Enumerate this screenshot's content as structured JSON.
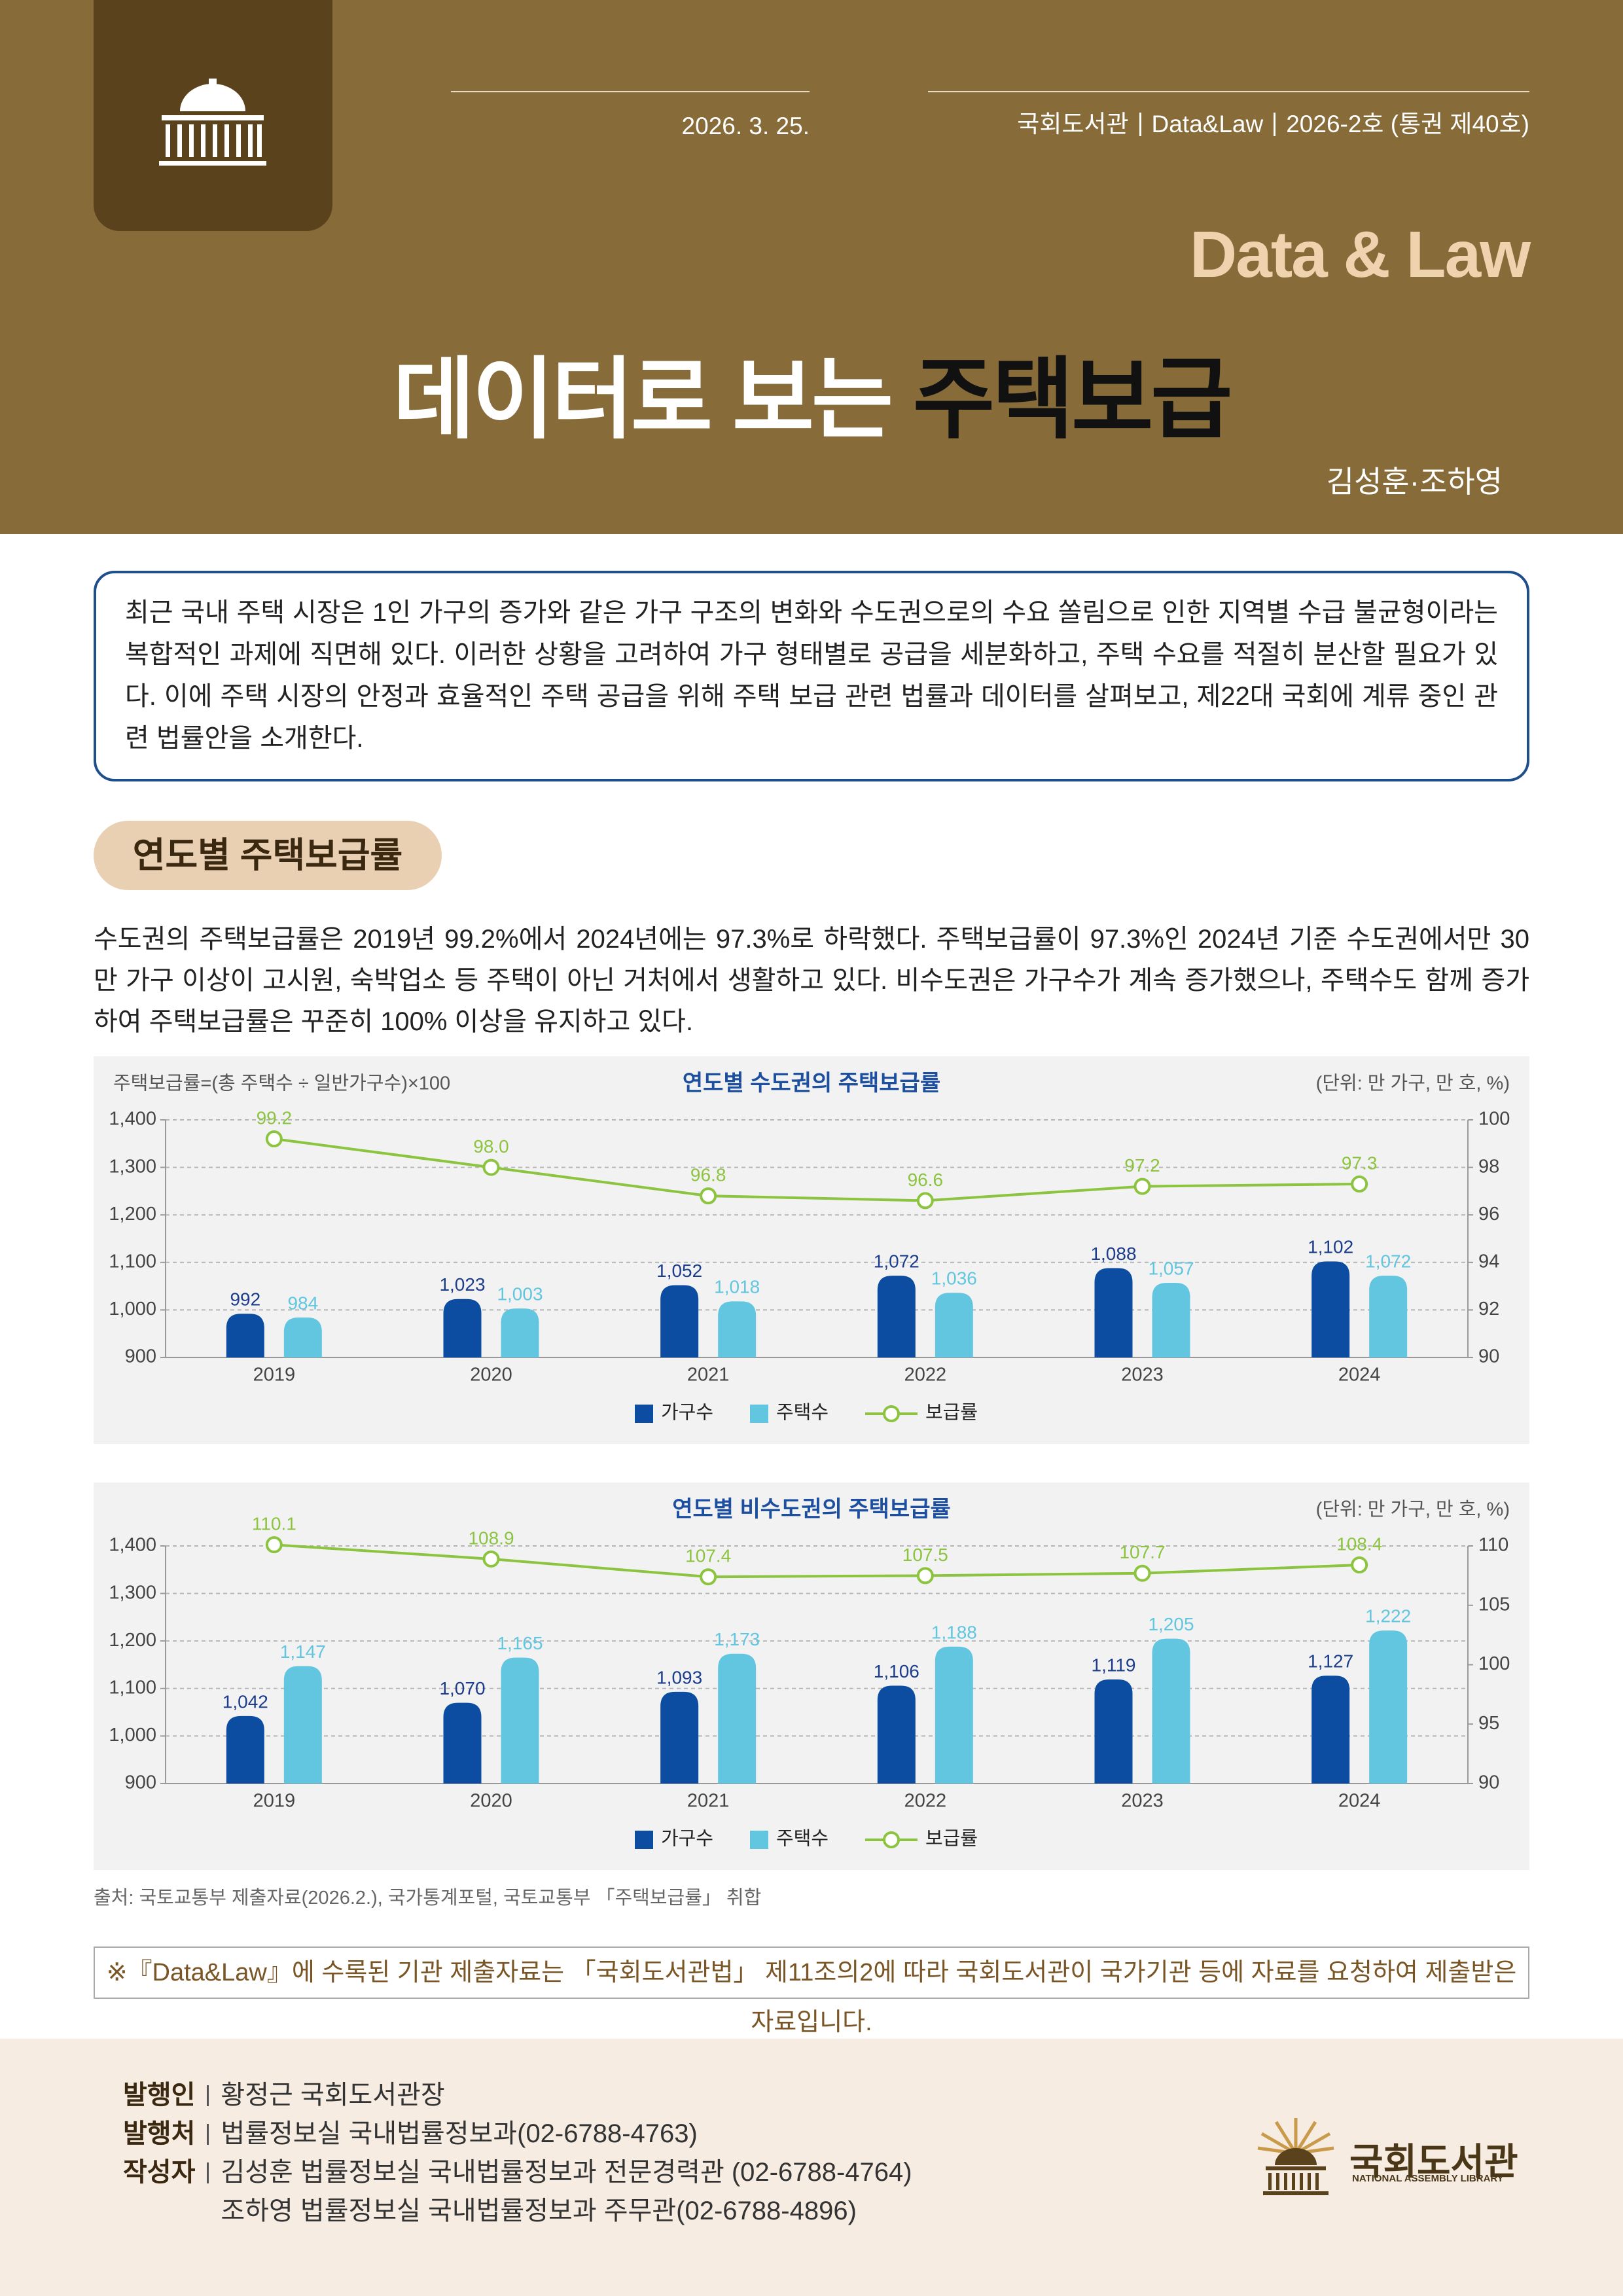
{
  "header": {
    "date": "2026. 3. 25.",
    "series_info": [
      "국회도서관",
      "Data&Law",
      "2026-2호 (통권 제40호)"
    ],
    "brand": "Data & Law",
    "title": [
      "데이터로 보는",
      "주택보급"
    ],
    "authors": "김성훈·조하영"
  },
  "intro": "최근 국내 주택 시장은 1인 가구의 증가와 같은 가구 구조의 변화와 수도권으로의 수요 쏠림으로 인한 지역별 수급 불균형이라는 복합적인 과제에 직면해 있다. 이러한 상황을 고려하여 가구 형태별로 공급을 세분화하고, 주택 수요를 적절히 분산할 필요가 있다. 이에 주택 시장의 안정과 효율적인 주택 공급을 위해 주택 보급 관련 법률과 데이터를 살펴보고, 제22대 국회에 계류 중인 관련 법률안을 소개한다.",
  "section_title": "연도별 주택보급률",
  "body": "수도권의 주택보급률은 2019년 99.2%에서 2024년에는 97.3%로 하락했다. 주택보급률이 97.3%인 2024년 기준 수도권에서만 30만 가구 이상이 고시원, 숙박업소 등 주택이 아닌 거처에서 생활하고 있다. 비수도권은 가구수가 계속 증가했으나, 주택수도 함께 증가하여 주택보급률은 꾸준히 100% 이상을 유지하고 있다.",
  "chart_data": [
    {
      "type": "combo",
      "title": "연도별 수도권의 주택보급률",
      "note": "주택보급률=(총 주택수 ÷ 일반가구수)×100",
      "unit": "(단위: 만 가구, 만 호, %)",
      "categories": [
        "2019",
        "2020",
        "2021",
        "2022",
        "2023",
        "2024"
      ],
      "series": [
        {
          "name": "가구수",
          "type": "bar",
          "color": "#0d4da1",
          "values": [
            992,
            1023,
            1052,
            1072,
            1088,
            1102
          ],
          "value_labels": [
            "992",
            "1,023",
            "1,052",
            "1,072",
            "1,088",
            "1,102"
          ]
        },
        {
          "name": "주택수",
          "type": "bar",
          "color": "#62c6e0",
          "values": [
            984,
            1003,
            1018,
            1036,
            1057,
            1072
          ],
          "value_labels": [
            "984",
            "1,003",
            "1,018",
            "1,036",
            "1,057",
            "1,072"
          ]
        },
        {
          "name": "보급률",
          "type": "line",
          "axis": "y2",
          "color": "#8cc43f",
          "values": [
            99.2,
            98.0,
            96.8,
            96.6,
            97.2,
            97.3
          ],
          "value_labels": [
            "99.2",
            "98.0",
            "96.8",
            "96.6",
            "97.2",
            "97.3"
          ]
        }
      ],
      "ylim": [
        900,
        1400
      ],
      "yticks": [
        900,
        {
          "value": 1000,
          "label": "1,000"
        },
        {
          "value": 1100,
          "label": "1,100"
        },
        {
          "value": 1200,
          "label": "1,200"
        },
        {
          "value": 1300,
          "label": "1,300"
        },
        {
          "value": 1400,
          "label": "1,400"
        }
      ],
      "y2lim": [
        90,
        100
      ],
      "y2ticks": [
        90,
        92,
        94,
        96,
        98,
        100
      ],
      "grid": true,
      "legend": "bottom"
    },
    {
      "type": "combo",
      "title": "연도별 비수도권의 주택보급률",
      "unit": "(단위: 만 가구, 만 호, %)",
      "categories": [
        "2019",
        "2020",
        "2021",
        "2022",
        "2023",
        "2024"
      ],
      "series": [
        {
          "name": "가구수",
          "type": "bar",
          "color": "#0d4da1",
          "values": [
            1042,
            1070,
            1093,
            1106,
            1119,
            1127
          ],
          "value_labels": [
            "1,042",
            "1,070",
            "1,093",
            "1,106",
            "1,119",
            "1,127"
          ]
        },
        {
          "name": "주택수",
          "type": "bar",
          "color": "#62c6e0",
          "values": [
            1147,
            1165,
            1173,
            1188,
            1205,
            1222
          ],
          "value_labels": [
            "1,147",
            "1,165",
            "1,173",
            "1,188",
            "1,205",
            "1,222"
          ]
        },
        {
          "name": "보급률",
          "type": "line",
          "axis": "y2",
          "color": "#8cc43f",
          "values": [
            110.1,
            108.9,
            107.4,
            107.5,
            107.7,
            108.4
          ],
          "value_labels": [
            "110.1",
            "108.9",
            "107.4",
            "107.5",
            "107.7",
            "108.4"
          ]
        }
      ],
      "ylim": [
        900,
        1400
      ],
      "yticks": [
        900,
        {
          "value": 1000,
          "label": "1,000"
        },
        {
          "value": 1100,
          "label": "1,100"
        },
        {
          "value": 1200,
          "label": "1,200"
        },
        {
          "value": 1300,
          "label": "1,300"
        },
        {
          "value": 1400,
          "label": "1,400"
        }
      ],
      "y2lim": [
        90,
        110
      ],
      "y2ticks": [
        90,
        95,
        100,
        105,
        110
      ],
      "grid": true,
      "legend": "bottom"
    }
  ],
  "source": "출처: 국토교통부 제출자료(2026.2.), 국가통계포털, 국토교통부 「주택보급률」 취합",
  "notice": "※『Data&Law』에 수록된 기관 제출자료는 「국회도서관법」 제11조의2에 따라 국회도서관이 국가기관 등에 자료를 요청하여 제출받은 자료입니다.",
  "footer": {
    "rows": [
      {
        "label": "발행인",
        "values": [
          "황정근 국회도서관장"
        ]
      },
      {
        "label": "발행처",
        "values": [
          "법률정보실 국내법률정보과(02-6788-4763)"
        ]
      },
      {
        "label": "작성자",
        "values": [
          "김성훈 법률정보실 국내법률정보과 전문경력관 (02-6788-4764)",
          "조하영 법률정보실 국내법률정보과 주무관(02-6788-4896)"
        ]
      }
    ],
    "logo_name": "국회도서관",
    "logo_sub": "NATIONAL ASSEMBLY LIBRARY"
  }
}
